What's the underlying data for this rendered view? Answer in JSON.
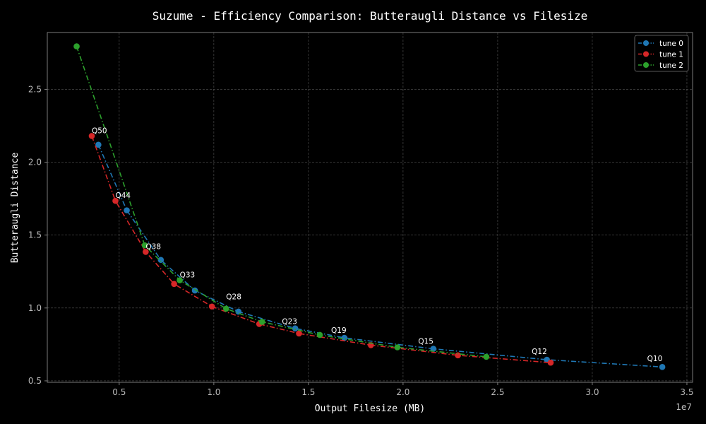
{
  "chart_data": {
    "type": "line",
    "title": "Suzume - Efficiency Comparison: Butteraugli Distance vs Filesize",
    "xlabel": "Output Filesize (MB)",
    "ylabel": "Butteraugli Distance",
    "x_offset_label": "1e7",
    "xlim": [
      0.12,
      3.53
    ],
    "ylim": [
      0.49,
      2.89
    ],
    "xticks": [
      0.5,
      1.0,
      1.5,
      2.0,
      2.5,
      3.0,
      3.5
    ],
    "xtick_labels": [
      "0.5",
      "1.0",
      "1.5",
      "2.0",
      "2.5",
      "3.0",
      "3.5"
    ],
    "yticks": [
      0.5,
      1.0,
      1.5,
      2.0,
      2.5
    ],
    "ytick_labels": [
      "0.5",
      "1.0",
      "1.5",
      "2.0",
      "2.5"
    ],
    "grid": true,
    "legend_position": "top-right",
    "series": [
      {
        "name": "tune 0",
        "color": "#1f77b4",
        "x": [
          0.39,
          0.54,
          0.72,
          0.9,
          1.13,
          1.43,
          1.69,
          2.16,
          2.76,
          3.37
        ],
        "y": [
          2.12,
          1.67,
          1.33,
          1.12,
          0.975,
          0.86,
          0.795,
          0.72,
          0.645,
          0.595
        ]
      },
      {
        "name": "tune 1",
        "color": "#d62728",
        "x": [
          0.355,
          0.48,
          0.64,
          0.79,
          0.99,
          1.24,
          1.45,
          1.83,
          2.29,
          2.78
        ],
        "y": [
          2.18,
          1.735,
          1.385,
          1.165,
          1.01,
          0.89,
          0.825,
          0.745,
          0.675,
          0.625
        ]
      },
      {
        "name": "tune 2",
        "color": "#2ca02c",
        "x": [
          0.275,
          0.635,
          0.82,
          1.065,
          1.255,
          1.56,
          1.97,
          2.44
        ],
        "y": [
          2.795,
          1.43,
          1.19,
          0.995,
          0.905,
          0.815,
          0.73,
          0.665
        ]
      }
    ],
    "annotations": [
      {
        "text": "Q50",
        "x": 0.355,
        "y": 2.18
      },
      {
        "text": "Q44",
        "x": 0.48,
        "y": 1.735
      },
      {
        "text": "Q38",
        "x": 0.64,
        "y": 1.385
      },
      {
        "text": "Q33",
        "x": 0.82,
        "y": 1.19
      },
      {
        "text": "Q28",
        "x": 1.065,
        "y": 1.04
      },
      {
        "text": "Q23",
        "x": 1.36,
        "y": 0.87
      },
      {
        "text": "Q19",
        "x": 1.62,
        "y": 0.81
      },
      {
        "text": "Q15",
        "x": 2.08,
        "y": 0.735
      },
      {
        "text": "Q12",
        "x": 2.68,
        "y": 0.665
      },
      {
        "text": "Q10",
        "x": 3.29,
        "y": 0.615
      }
    ]
  }
}
